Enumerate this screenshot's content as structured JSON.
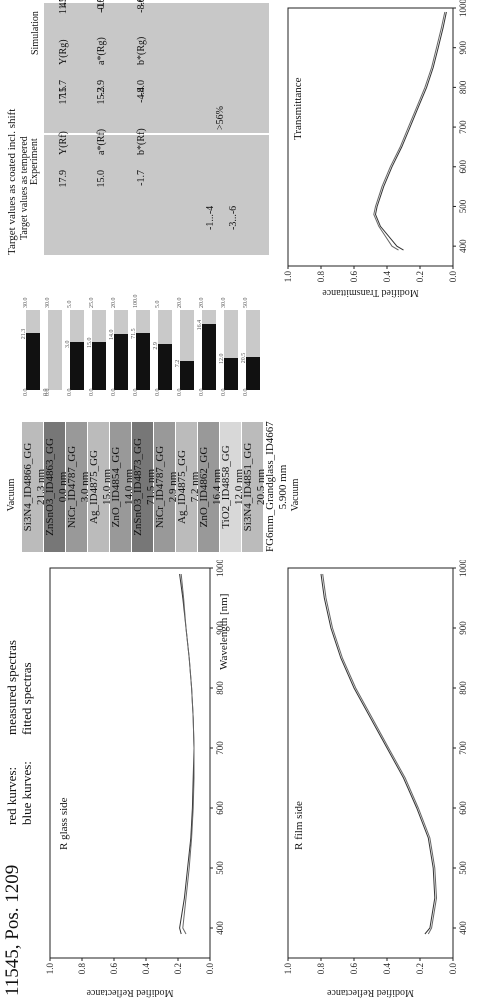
{
  "header": {
    "title": "11545, Pos. 1209",
    "legend_red_label": "red kurves:",
    "legend_red_value": "measured spectras",
    "legend_blue_label": "blue kurves:",
    "legend_blue_value": "fitted spectras"
  },
  "chart_data": [
    {
      "type": "line",
      "title": "R glass side",
      "xlabel": "Wavelength [nm]",
      "ylabel": "Modified Reflectance",
      "xlim": [
        350,
        1000
      ],
      "ylim": [
        0,
        1.0
      ],
      "xticks": [
        "400",
        "500",
        "600",
        "700",
        "800",
        "900",
        "1000"
      ],
      "yticks": [
        "0.0",
        "0.2",
        "0.4",
        "0.6",
        "0.8",
        "1.0"
      ],
      "x": [
        390,
        400,
        450,
        500,
        550,
        600,
        650,
        700,
        750,
        800,
        850,
        900,
        950,
        990
      ],
      "series": [
        {
          "values": [
            0.18,
            0.19,
            0.16,
            0.14,
            0.12,
            0.11,
            0.105,
            0.1,
            0.105,
            0.115,
            0.13,
            0.15,
            0.17,
            0.19
          ]
        },
        {
          "values": [
            0.15,
            0.17,
            0.15,
            0.13,
            0.115,
            0.105,
            0.1,
            0.1,
            0.105,
            0.115,
            0.13,
            0.15,
            0.165,
            0.18
          ]
        }
      ]
    },
    {
      "type": "line",
      "title": "R film side",
      "xlabel": "",
      "ylabel": "Modified Reflectance",
      "xlim": [
        350,
        1000
      ],
      "ylim": [
        0,
        1.0
      ],
      "xticks": [
        "400",
        "500",
        "600",
        "700",
        "800",
        "900",
        "1000"
      ],
      "yticks": [
        "0.0",
        "0.2",
        "0.4",
        "0.6",
        "0.8",
        "1.0"
      ],
      "x": [
        390,
        400,
        450,
        500,
        550,
        600,
        650,
        700,
        750,
        800,
        850,
        900,
        950,
        990
      ],
      "series": [
        {
          "values": [
            0.17,
            0.14,
            0.11,
            0.12,
            0.15,
            0.22,
            0.3,
            0.4,
            0.5,
            0.6,
            0.68,
            0.74,
            0.78,
            0.8
          ]
        },
        {
          "values": [
            0.15,
            0.13,
            0.1,
            0.11,
            0.14,
            0.21,
            0.29,
            0.39,
            0.49,
            0.59,
            0.67,
            0.73,
            0.77,
            0.79
          ]
        }
      ]
    },
    {
      "type": "line",
      "title": "Transmittance",
      "xlabel": "",
      "ylabel": "Modified Transmittance",
      "xlim": [
        350,
        1000
      ],
      "ylim": [
        0,
        1.0
      ],
      "xticks": [
        "400",
        "500",
        "600",
        "700",
        "800",
        "900",
        "1000"
      ],
      "yticks": [
        "0.0",
        "0.2",
        "0.4",
        "0.6",
        "0.8",
        "1.0"
      ],
      "x": [
        390,
        400,
        450,
        480,
        500,
        550,
        600,
        650,
        700,
        750,
        800,
        850,
        900,
        950,
        990
      ],
      "series": [
        {
          "values": [
            0.3,
            0.34,
            0.44,
            0.47,
            0.46,
            0.42,
            0.37,
            0.31,
            0.26,
            0.21,
            0.16,
            0.12,
            0.09,
            0.06,
            0.04
          ]
        },
        {
          "values": [
            0.33,
            0.37,
            0.45,
            0.48,
            0.47,
            0.43,
            0.38,
            0.32,
            0.27,
            0.22,
            0.17,
            0.13,
            0.1,
            0.07,
            0.05
          ]
        }
      ]
    }
  ],
  "stack": {
    "top_label": "Vacuum",
    "bottom_label": "Vacuum",
    "layers": [
      {
        "name": "Si3N4_ID4866_GG",
        "thickness": "21.3 nm",
        "shade": "light",
        "bar": {
          "value": "21.3",
          "max": "30.0",
          "fraction": 0.71
        }
      },
      {
        "name": "ZnSnO3_ID4863_GG",
        "thickness": "0.0 nm",
        "shade": "dark",
        "bar": {
          "value": "0.0",
          "max": "30.0",
          "fraction": 0.0
        }
      },
      {
        "name": "NiCr_ID4787_GG",
        "thickness": "3.0 nm",
        "shade": "mid",
        "bar": {
          "value": "3.0",
          "max": "5.0",
          "fraction": 0.6
        }
      },
      {
        "name": "Ag_ID4875_GG",
        "thickness": "15.0 nm",
        "shade": "light",
        "bar": {
          "value": "15.0",
          "max": "25.0",
          "fraction": 0.6
        }
      },
      {
        "name": "ZnO_ID4854_GG",
        "thickness": "14.0 nm",
        "shade": "mid",
        "bar": {
          "value": "14.0",
          "max": "20.0",
          "fraction": 0.7
        }
      },
      {
        "name": "ZnSnO3_ID4873_GG",
        "thickness": "71.5 nm",
        "shade": "dark",
        "bar": {
          "value": "71.5",
          "max": "100.0",
          "fraction": 0.715
        }
      },
      {
        "name": "NiCr_ID4787_GG",
        "thickness": "2.9 nm",
        "shade": "mid",
        "bar": {
          "value": "2.9",
          "max": "5.0",
          "fraction": 0.58
        }
      },
      {
        "name": "Ag_ID4875_GG",
        "thickness": "7.2 nm",
        "shade": "light",
        "bar": {
          "value": "7.2",
          "max": "20.0",
          "fraction": 0.36
        }
      },
      {
        "name": "ZnO_ID4862_GG",
        "thickness": "16.4 nm",
        "shade": "mid",
        "bar": {
          "value": "16.4",
          "max": "20.0",
          "fraction": 0.82
        }
      },
      {
        "name": "TiO2_ID4858_GG",
        "thickness": "12.0 nm",
        "shade": "pale",
        "bar": {
          "value": "12.0",
          "max": "30.0",
          "fraction": 0.4
        }
      },
      {
        "name": "Si3N4_ID4851_GG",
        "thickness": "20.5 nm",
        "shade": "light",
        "bar": {
          "value": "20.5",
          "max": "50.0",
          "fraction": 0.41
        }
      },
      {
        "name": "FG6mm_Grandglass_ID4667",
        "thickness": "5.900 mm",
        "shade": "white",
        "bar": null
      }
    ]
  },
  "target_table": {
    "title": "Target values as coated incl. shift",
    "col_header_1": "Target values as tempered",
    "col_header_2": "Experiment",
    "col_header_3": "Simulation",
    "target_rf_a": "-1...-4",
    "target_rf_b": "-3...-6",
    "target_t": ">56%",
    "rows": [
      {
        "label": "Y(Rf)",
        "exp": "17.9",
        "sim": "17.5"
      },
      {
        "label": "a*(Rf)",
        "exp": "15.0",
        "sim": "15.3"
      },
      {
        "label": "b*(Rf)",
        "exp": "-1.7",
        "sim": "-4.4"
      },
      {
        "label": "Y(Rg)",
        "exp": "11.7",
        "sim": "11.5"
      },
      {
        "label": "a*(Rg)",
        "exp": "-2.9",
        "sim": "-0.5"
      },
      {
        "label": "b*(Rg)",
        "exp": "-8.0",
        "sim": "-8.8"
      },
      {
        "label": "Y(T)",
        "exp": "41.6",
        "sim": "40.9"
      },
      {
        "label": "a*(T)",
        "exp": "-10.7",
        "sim": "-10.2"
      },
      {
        "label": "b*(T)",
        "exp": "-6.8",
        "sim": "-6.7"
      }
    ]
  },
  "colors": {
    "curve_measured": "#333333",
    "curve_fitted": "#666666",
    "box_fill": "#c8c8c8"
  }
}
